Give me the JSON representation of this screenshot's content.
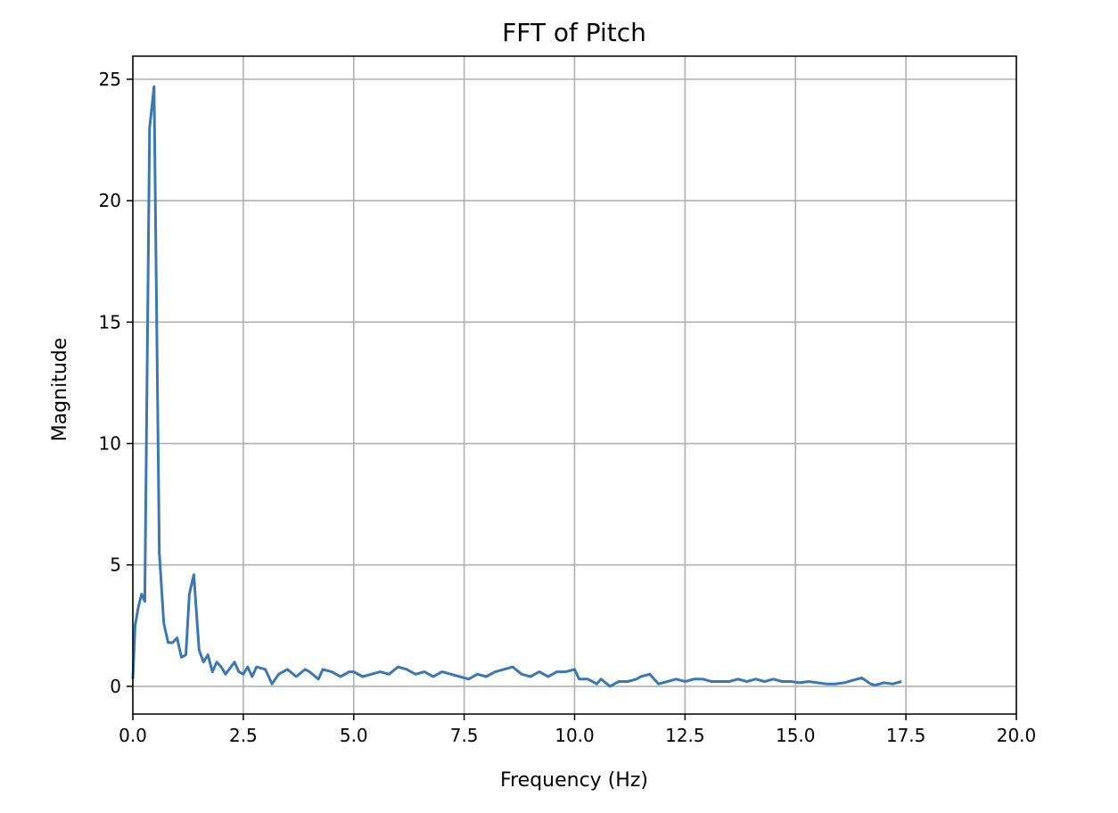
{
  "chart_data": {
    "type": "line",
    "title": "FFT of Pitch",
    "xlabel": "Frequency (Hz)",
    "ylabel": "Magnitude",
    "xlim": [
      0,
      20
    ],
    "ylim": [
      -1.14,
      25.95
    ],
    "grid": true,
    "xticks": [
      "0.0",
      "2.5",
      "5.0",
      "7.5",
      "10.0",
      "12.5",
      "15.0",
      "17.5",
      "20.0"
    ],
    "xtick_values": [
      0,
      2.5,
      5,
      7.5,
      10,
      12.5,
      15,
      17.5,
      20
    ],
    "yticks": [
      "0",
      "5",
      "10",
      "15",
      "20",
      "25"
    ],
    "ytick_values": [
      0,
      5,
      10,
      15,
      20,
      25
    ],
    "series": [
      {
        "name": "FFT magnitude",
        "color": "#3a78b5",
        "x": [
          0,
          0.05,
          0.13,
          0.2,
          0.27,
          0.38,
          0.48,
          0.6,
          0.7,
          0.8,
          0.9,
          1.0,
          1.1,
          1.2,
          1.28,
          1.38,
          1.5,
          1.6,
          1.7,
          1.8,
          1.9,
          2.0,
          2.1,
          2.3,
          2.4,
          2.5,
          2.6,
          2.7,
          2.8,
          3.0,
          3.15,
          3.3,
          3.5,
          3.7,
          3.9,
          4.0,
          4.2,
          4.3,
          4.5,
          4.7,
          4.9,
          5.0,
          5.2,
          5.4,
          5.6,
          5.8,
          6.0,
          6.2,
          6.4,
          6.6,
          6.8,
          7.0,
          7.2,
          7.4,
          7.6,
          7.8,
          8.0,
          8.2,
          8.4,
          8.6,
          8.8,
          9.0,
          9.2,
          9.4,
          9.6,
          9.8,
          10.0,
          10.1,
          10.3,
          10.5,
          10.6,
          10.8,
          11.0,
          11.2,
          11.4,
          11.5,
          11.7,
          11.9,
          12.1,
          12.3,
          12.5,
          12.7,
          12.9,
          13.1,
          13.3,
          13.5,
          13.7,
          13.9,
          14.1,
          14.3,
          14.5,
          14.7,
          14.9,
          15.1,
          15.3,
          15.5,
          15.7,
          15.9,
          16.1,
          16.3,
          16.5,
          16.7,
          16.8,
          17.0,
          17.2,
          17.4
        ],
        "y": [
          0.3,
          2.5,
          3.3,
          3.8,
          3.5,
          23.0,
          24.7,
          5.5,
          2.6,
          1.8,
          1.8,
          2.0,
          1.2,
          1.3,
          3.8,
          4.6,
          1.5,
          1.0,
          1.3,
          0.6,
          1.0,
          0.8,
          0.5,
          1.0,
          0.6,
          0.5,
          0.8,
          0.4,
          0.8,
          0.7,
          0.1,
          0.5,
          0.7,
          0.4,
          0.7,
          0.6,
          0.3,
          0.7,
          0.6,
          0.4,
          0.6,
          0.6,
          0.4,
          0.5,
          0.6,
          0.5,
          0.8,
          0.7,
          0.5,
          0.6,
          0.4,
          0.6,
          0.5,
          0.4,
          0.3,
          0.5,
          0.4,
          0.6,
          0.7,
          0.8,
          0.5,
          0.4,
          0.6,
          0.4,
          0.6,
          0.6,
          0.7,
          0.3,
          0.3,
          0.1,
          0.3,
          0.0,
          0.2,
          0.2,
          0.3,
          0.4,
          0.5,
          0.1,
          0.2,
          0.3,
          0.2,
          0.3,
          0.3,
          0.2,
          0.2,
          0.2,
          0.3,
          0.2,
          0.3,
          0.2,
          0.3,
          0.2,
          0.2,
          0.15,
          0.2,
          0.15,
          0.1,
          0.1,
          0.15,
          0.25,
          0.35,
          0.1,
          0.05,
          0.15,
          0.1,
          0.2
        ]
      }
    ]
  }
}
